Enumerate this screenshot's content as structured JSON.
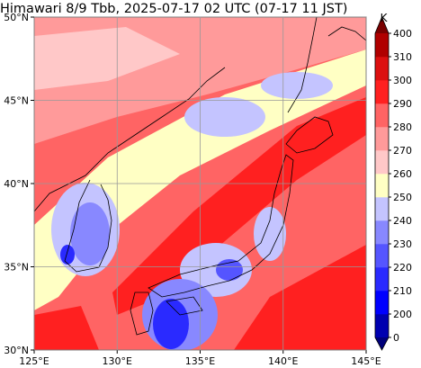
{
  "title": "Himawari 8/9 Tbb, 2025-07-17 02 UTC (07-17 11 JST)",
  "map": {
    "xlim": [
      125,
      145
    ],
    "ylim": [
      30,
      50
    ],
    "xticks": [
      {
        "value": 125,
        "label": "125°E"
      },
      {
        "value": 130,
        "label": "130°E"
      },
      {
        "value": 135,
        "label": "135°E"
      },
      {
        "value": 140,
        "label": "140°E"
      },
      {
        "value": 145,
        "label": "145°E"
      }
    ],
    "yticks": [
      {
        "value": 30,
        "label": "30°N"
      },
      {
        "value": 35,
        "label": "35°N"
      },
      {
        "value": 40,
        "label": "40°N"
      },
      {
        "value": 45,
        "label": "45°N"
      },
      {
        "value": 50,
        "label": "50°N"
      }
    ],
    "grid": true
  },
  "colorbar": {
    "label": "K",
    "ticks": [
      0,
      200,
      210,
      220,
      230,
      240,
      250,
      260,
      270,
      280,
      290,
      300,
      310,
      400
    ],
    "colors": [
      "#0000b0",
      "#0000ff",
      "#2a2aff",
      "#5555ff",
      "#8888ff",
      "#c4c4ff",
      "#ffffc4",
      "#ffc8c8",
      "#ff9a9a",
      "#ff6464",
      "#ff2020",
      "#dc1010",
      "#b00000"
    ],
    "extend_colors": [
      "#00007a",
      "#7a0000"
    ]
  }
}
